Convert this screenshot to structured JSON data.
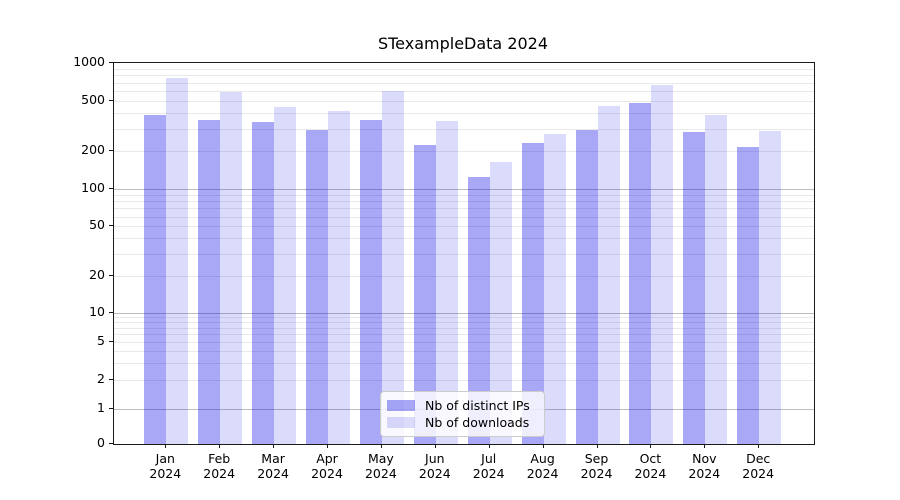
{
  "figure": {
    "title": "STexampleData 2024"
  },
  "chart_data": {
    "type": "bar",
    "title": "STexampleData 2024",
    "yscale": "symlog",
    "ylim": [
      0,
      1000
    ],
    "y_ticks": [
      0,
      1,
      2,
      5,
      10,
      20,
      50,
      100,
      200,
      500,
      1000
    ],
    "grid": true,
    "legend_position": "lower center",
    "categories": [
      "Jan",
      "Feb",
      "Mar",
      "Apr",
      "May",
      "Jun",
      "Jul",
      "Aug",
      "Sep",
      "Oct",
      "Nov",
      "Dec"
    ],
    "year": "2024",
    "series": [
      {
        "name": "Nb of distinct IPs",
        "color": "rgba(0,0,230,0.34)",
        "values": [
          385,
          350,
          340,
          295,
          350,
          225,
          125,
          230,
          295,
          480,
          285,
          215
        ]
      },
      {
        "name": "Nb of downloads",
        "color": "rgba(0,0,230,0.14)",
        "values": [
          760,
          585,
          450,
          420,
          605,
          345,
          165,
          275,
          455,
          670,
          390,
          290
        ]
      }
    ],
    "colors": {
      "grid_major": "#bdbdbd",
      "grid_minor": "#e9e9e9",
      "axis": "#1a1a1a",
      "background": "#ffffff"
    }
  }
}
